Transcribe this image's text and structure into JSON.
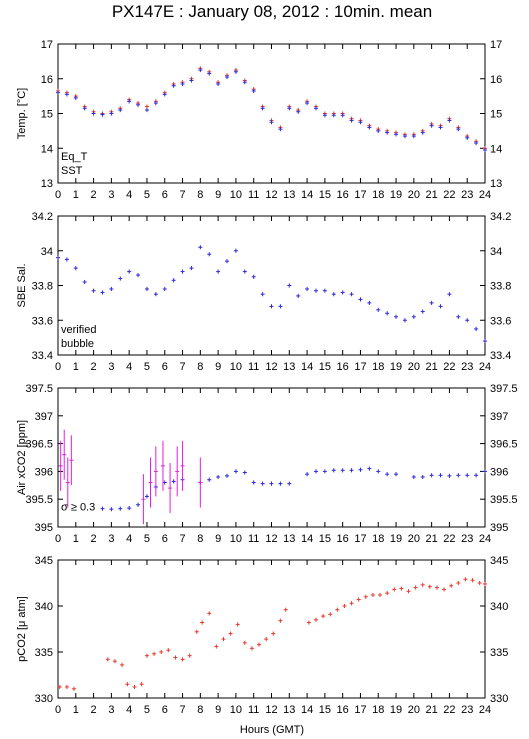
{
  "title": "PX147E : January 08, 2012 : 10min. mean",
  "xlabel": "Hours (GMT)",
  "xticks": [
    "0",
    "1",
    "2",
    "3",
    "4",
    "5",
    "6",
    "7",
    "8",
    "9",
    "10",
    "11",
    "12",
    "13",
    "14",
    "15",
    "16",
    "17",
    "18",
    "19",
    "20",
    "21",
    "22",
    "23",
    "24"
  ],
  "colors": {
    "red": "#e8392f",
    "blue": "#2a2adc",
    "magenta": "#e21ee2"
  },
  "chart_data": [
    {
      "type": "scatter",
      "ylabel": "Temp. [°C]",
      "xlim": [
        0,
        24
      ],
      "ylim": [
        13,
        17
      ],
      "yticks": [
        "13",
        "14",
        "15",
        "16",
        "17"
      ],
      "legend": [
        "Eq_T",
        "SST"
      ],
      "legend_position": "bottom-left",
      "series": [
        {
          "name": "Eq_T",
          "color": "red",
          "x": [
            0,
            0.5,
            1,
            1.5,
            2,
            2.5,
            3,
            3.5,
            4,
            4.5,
            5,
            5.5,
            6,
            6.5,
            7,
            7.5,
            8,
            8.5,
            9,
            9.5,
            10,
            10.5,
            11,
            11.5,
            12,
            12.5,
            13,
            13.5,
            14,
            14.5,
            15,
            15.5,
            16,
            16.5,
            17,
            17.5,
            18,
            18.5,
            19,
            19.5,
            20,
            20.5,
            21,
            21.5,
            22,
            22.5,
            23,
            23.5,
            24
          ],
          "y": [
            15.65,
            15.6,
            15.5,
            15.2,
            15.05,
            15.0,
            15.05,
            15.15,
            15.4,
            15.3,
            15.2,
            15.35,
            15.6,
            15.85,
            15.9,
            16.0,
            16.3,
            16.2,
            15.9,
            16.1,
            16.25,
            15.95,
            15.7,
            15.2,
            14.8,
            14.6,
            15.2,
            15.1,
            15.35,
            15.2,
            15.0,
            15.0,
            15.0,
            14.85,
            14.8,
            14.65,
            14.55,
            14.5,
            14.45,
            14.4,
            14.4,
            14.5,
            14.7,
            14.65,
            14.85,
            14.6,
            14.35,
            14.2,
            14.0
          ]
        },
        {
          "name": "SST",
          "color": "blue",
          "x": [
            0,
            0.5,
            1,
            1.5,
            2,
            2.5,
            3,
            3.5,
            4,
            4.5,
            5,
            5.5,
            6,
            6.5,
            7,
            7.5,
            8,
            8.5,
            9,
            9.5,
            10,
            10.5,
            11,
            11.5,
            12,
            12.5,
            13,
            13.5,
            14,
            14.5,
            15,
            15.5,
            16,
            16.5,
            17,
            17.5,
            18,
            18.5,
            19,
            19.5,
            20,
            20.5,
            21,
            21.5,
            22,
            22.5,
            23,
            23.5,
            24
          ],
          "y": [
            15.6,
            15.55,
            15.45,
            15.15,
            15.0,
            14.97,
            15.0,
            15.1,
            15.35,
            15.25,
            15.1,
            15.3,
            15.55,
            15.8,
            15.85,
            15.95,
            16.25,
            16.15,
            15.85,
            16.05,
            16.2,
            15.9,
            15.65,
            15.15,
            14.75,
            14.55,
            15.15,
            15.05,
            15.3,
            15.15,
            14.95,
            14.95,
            14.95,
            14.8,
            14.75,
            14.6,
            14.5,
            14.45,
            14.4,
            14.35,
            14.35,
            14.45,
            14.65,
            14.6,
            14.8,
            14.55,
            14.3,
            14.15,
            13.95
          ]
        }
      ]
    },
    {
      "type": "scatter",
      "ylabel": "SBE Sal.",
      "xlim": [
        0,
        24
      ],
      "ylim": [
        33.4,
        34.2
      ],
      "yticks": [
        "33.4",
        "33.6",
        "33.8",
        "34",
        "34.2"
      ],
      "legend": [
        "verified",
        "bubble"
      ],
      "legend_position": "bottom-left",
      "series": [
        {
          "name": "verified",
          "color": "blue",
          "x": [
            0,
            0.5,
            1,
            1.5,
            2,
            2.5,
            3,
            3.5,
            4,
            4.5,
            5,
            5.5,
            6,
            6.5,
            7,
            7.5,
            8,
            8.5,
            9,
            9.5,
            10,
            10.5,
            11,
            11.5,
            12,
            12.5,
            13,
            13.5,
            14,
            14.5,
            15,
            15.5,
            16,
            16.5,
            17,
            17.5,
            18,
            18.5,
            19,
            19.5,
            20,
            20.5,
            21,
            21.5,
            22,
            22.5,
            23,
            23.5,
            24
          ],
          "y": [
            33.96,
            33.95,
            33.9,
            33.82,
            33.77,
            33.76,
            33.78,
            33.84,
            33.88,
            33.86,
            33.78,
            33.75,
            33.78,
            33.83,
            33.88,
            33.9,
            34.02,
            33.98,
            33.88,
            33.94,
            34.0,
            33.88,
            33.85,
            33.75,
            33.68,
            33.68,
            33.8,
            33.74,
            33.78,
            33.77,
            33.77,
            33.75,
            33.76,
            33.75,
            33.72,
            33.7,
            33.66,
            33.64,
            33.62,
            33.6,
            33.62,
            33.65,
            33.7,
            33.68,
            33.75,
            33.62,
            33.6,
            33.55,
            33.48
          ]
        }
      ]
    },
    {
      "type": "scatter",
      "ylabel": "Air xCO2 [ppm]",
      "xlim": [
        0,
        24
      ],
      "ylim": [
        395,
        397.5
      ],
      "yticks": [
        "395",
        "395.5",
        "396",
        "396.5",
        "397",
        "397.5"
      ],
      "annotation": "σ ≥ 0.3",
      "series": [
        {
          "name": "",
          "color": "blue",
          "x": [
            2.5,
            3,
            3.5,
            4,
            4.5,
            5,
            5.5,
            6,
            6.5,
            7,
            8,
            8.5,
            9,
            9.5,
            10,
            10.5,
            11,
            11.5,
            12,
            12.5,
            13,
            14,
            14.5,
            15,
            15.5,
            16,
            16.5,
            17,
            17.5,
            18,
            18.5,
            19,
            20,
            20.5,
            21,
            21.5,
            22,
            22.5,
            23,
            23.5,
            24
          ],
          "y": [
            395.33,
            395.32,
            395.33,
            395.34,
            395.4,
            395.55,
            395.72,
            395.8,
            395.82,
            395.85,
            395.8,
            395.85,
            395.9,
            395.92,
            396.0,
            395.98,
            395.8,
            395.78,
            395.78,
            395.78,
            395.78,
            395.95,
            396.0,
            396.0,
            396.02,
            396.02,
            396.02,
            396.03,
            396.05,
            396.0,
            395.95,
            395.95,
            395.9,
            395.9,
            395.93,
            395.93,
            395.92,
            395.93,
            395.93,
            395.93,
            396.0
          ]
        },
        {
          "name": "",
          "color": "magenta",
          "x": [
            0.15,
            0.35,
            0.55,
            0.75,
            4.8,
            5.2,
            5.5,
            5.9,
            6.3,
            6.7,
            7.0,
            8.0
          ],
          "y": [
            396.1,
            396.3,
            395.8,
            396.2,
            395.5,
            395.8,
            396.0,
            396.1,
            395.7,
            396.0,
            396.1,
            395.8
          ]
        }
      ]
    },
    {
      "type": "scatter",
      "ylabel": "pCO2 [μ atm]",
      "xlim": [
        0,
        24
      ],
      "ylim": [
        330,
        345
      ],
      "yticks": [
        "330",
        "335",
        "340",
        "345"
      ],
      "series": [
        {
          "name": "",
          "color": "red",
          "x": [
            0.1,
            0.5,
            0.9,
            2.8,
            3.2,
            3.6,
            3.9,
            4.3,
            4.7,
            5.0,
            5.4,
            5.8,
            6.2,
            6.6,
            7.0,
            7.4,
            7.8,
            8.1,
            8.5,
            8.9,
            9.3,
            9.7,
            10.1,
            10.5,
            10.9,
            11.3,
            11.7,
            12.1,
            12.5,
            12.8,
            14.1,
            14.5,
            14.9,
            15.3,
            15.7,
            16.1,
            16.5,
            16.9,
            17.3,
            17.7,
            18.1,
            18.5,
            18.9,
            19.3,
            19.7,
            20.1,
            20.5,
            20.9,
            21.3,
            21.7,
            22.1,
            22.5,
            22.9,
            23.3,
            23.7,
            24.0
          ],
          "y": [
            331.2,
            331.2,
            331.0,
            334.2,
            334.0,
            333.6,
            331.5,
            331.2,
            331.5,
            334.6,
            334.8,
            335.0,
            335.2,
            334.4,
            334.2,
            334.6,
            337.2,
            338.2,
            339.2,
            335.6,
            336.4,
            337.0,
            338.0,
            336.0,
            335.4,
            335.8,
            336.4,
            337.0,
            338.4,
            339.6,
            338.2,
            338.5,
            338.9,
            339.1,
            339.6,
            340.0,
            340.3,
            340.7,
            341.0,
            341.2,
            341.2,
            341.4,
            341.8,
            341.9,
            341.6,
            342.0,
            342.3,
            342.1,
            342.0,
            341.8,
            342.2,
            342.5,
            342.9,
            342.8,
            342.5,
            342.4
          ]
        }
      ]
    }
  ]
}
